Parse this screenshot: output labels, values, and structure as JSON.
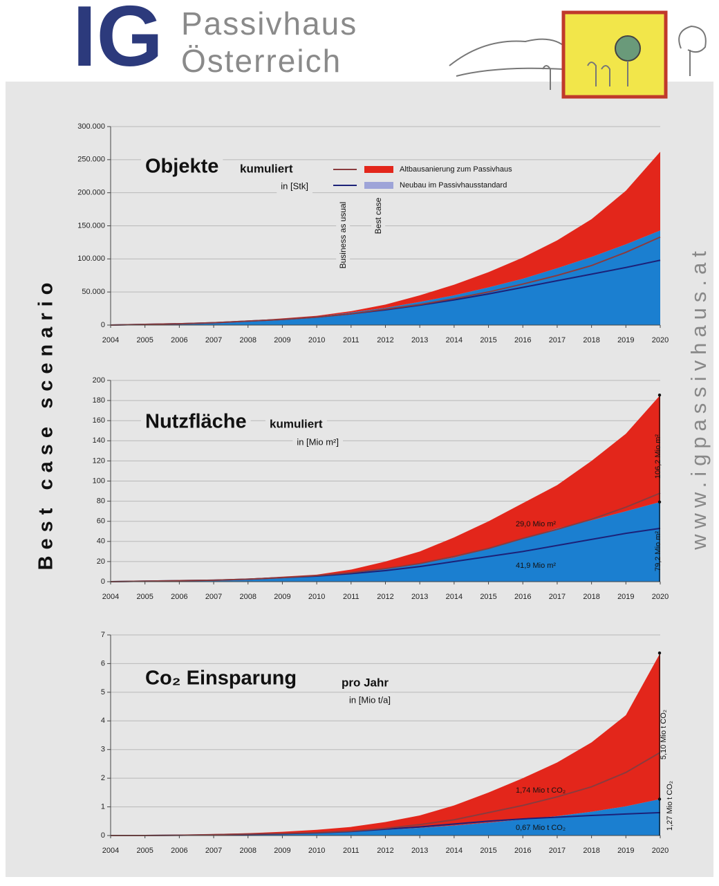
{
  "header": {
    "logo": "IG",
    "name_line1": "Passivhaus",
    "name_line2": "Österreich"
  },
  "side_left": "Best case scenario",
  "side_right": "www.igpassivhaus.at",
  "chart_data": [
    {
      "type": "area",
      "title": "Objekte",
      "subtitle": "kumuliert",
      "unit": "in [Stk]",
      "x": [
        2004,
        2005,
        2006,
        2007,
        2008,
        2009,
        2010,
        2011,
        2012,
        2013,
        2014,
        2015,
        2016,
        2017,
        2018,
        2019,
        2020
      ],
      "xlim": [
        2004,
        2020
      ],
      "xticks": [
        2004,
        2005,
        2006,
        2007,
        2008,
        2009,
        2010,
        2011,
        2012,
        2013,
        2014,
        2015,
        2016,
        2017,
        2018,
        2019,
        2020
      ],
      "ylim": [
        0,
        300000
      ],
      "yticks": [
        0,
        {
          "value": 50000,
          "label": "50.000"
        },
        {
          "value": 100000,
          "label": "100.000"
        },
        {
          "value": 150000,
          "label": "150.000"
        },
        {
          "value": 200000,
          "label": "200.000"
        },
        {
          "value": 250000,
          "label": "250.000"
        },
        {
          "value": 300000,
          "label": "300.000"
        }
      ],
      "grid": true,
      "legend": {
        "columns": [
          "Business as usual",
          "Best case"
        ]
      },
      "series": [
        {
          "name": "Neubau  im  Passivhausstandard",
          "color": "#1b7fd0",
          "legend_color": "#9ea4d8",
          "line_color": "#1c2178",
          "values": [
            0,
            1000,
            2000,
            3500,
            6000,
            9000,
            13000,
            19000,
            26000,
            35000,
            45000,
            57000,
            70000,
            86000,
            103000,
            122000,
            143000
          ],
          "bau_values": [
            0,
            1000,
            2000,
            3500,
            6000,
            8500,
            12000,
            17000,
            23000,
            30000,
            38000,
            47000,
            57000,
            67000,
            77000,
            87000,
            98000
          ]
        },
        {
          "name": "Altbausanierung zum Passivhaus",
          "color": "#e3261b",
          "line_color": "#8a3b3e",
          "values": [
            0,
            0,
            0,
            500,
            500,
            1000,
            1000,
            2000,
            5000,
            10000,
            16000,
            23000,
            32000,
            42000,
            57000,
            81000,
            119000
          ],
          "bau_values": [
            0,
            1000,
            2000,
            3500,
            6000,
            8500,
            12000,
            17000,
            24000,
            31000,
            40000,
            50000,
            62000,
            75000,
            90000,
            110000,
            133000
          ]
        }
      ]
    },
    {
      "type": "area",
      "title": "Nutzfläche",
      "subtitle": "kumuliert",
      "unit": "in [Mio m²]",
      "x": [
        2004,
        2005,
        2006,
        2007,
        2008,
        2009,
        2010,
        2011,
        2012,
        2013,
        2014,
        2015,
        2016,
        2017,
        2018,
        2019,
        2020
      ],
      "xlim": [
        2004,
        2020
      ],
      "xticks": [
        2004,
        2005,
        2006,
        2007,
        2008,
        2009,
        2010,
        2011,
        2012,
        2013,
        2014,
        2015,
        2016,
        2017,
        2018,
        2019,
        2020
      ],
      "ylim": [
        0,
        200
      ],
      "yticks": [
        0,
        20,
        40,
        60,
        80,
        100,
        120,
        140,
        160,
        180,
        200
      ],
      "grid": true,
      "series": [
        {
          "color": "#1b7fd0",
          "line_color": "#1c2178",
          "values": [
            0,
            0.5,
            1,
            1.5,
            2.5,
            4,
            6,
            9,
            13,
            18,
            24,
            33,
            43,
            53,
            61,
            70,
            79.2
          ],
          "bau_values": [
            0,
            0.5,
            1,
            1.5,
            2.5,
            4,
            5.5,
            8,
            11,
            15,
            20,
            25,
            30,
            36,
            42,
            48,
            53
          ]
        },
        {
          "color": "#e3261b",
          "line_color": "#8a3b3e",
          "values": [
            0,
            0,
            0,
            0.5,
            0.5,
            1,
            1,
            3,
            7,
            12,
            20,
            27,
            35,
            43,
            59,
            77,
            106.2
          ],
          "bau_values": [
            0,
            0.5,
            1,
            1.5,
            2.5,
            4,
            6,
            9,
            13,
            18,
            25,
            33,
            43,
            52,
            62,
            74,
            88
          ]
        }
      ],
      "annotations": [
        "29,0 Mio m²",
        "41,9 Mio m²",
        "106,2 Mio m²",
        "79,2 Mio m²"
      ]
    },
    {
      "type": "area",
      "title": "Co₂ Einsparung",
      "subtitle": "pro Jahr",
      "unit": "in [Mio t/a]",
      "x": [
        2004,
        2005,
        2006,
        2007,
        2008,
        2009,
        2010,
        2011,
        2012,
        2013,
        2014,
        2015,
        2016,
        2017,
        2018,
        2019,
        2020
      ],
      "xlim": [
        2004,
        2020
      ],
      "xticks": [
        2004,
        2005,
        2006,
        2007,
        2008,
        2009,
        2010,
        2011,
        2012,
        2013,
        2014,
        2015,
        2016,
        2017,
        2018,
        2019,
        2020
      ],
      "ylim": [
        0,
        7
      ],
      "yticks": [
        0,
        1,
        2,
        3,
        4,
        5,
        6,
        7
      ],
      "grid": true,
      "series": [
        {
          "color": "#1b7fd0",
          "line_color": "#1c2178",
          "values": [
            0,
            0,
            0,
            0.02,
            0.04,
            0.07,
            0.1,
            0.15,
            0.2,
            0.27,
            0.35,
            0.45,
            0.56,
            0.68,
            0.83,
            1.02,
            1.27
          ],
          "bau_values": [
            0,
            0,
            0.01,
            0.02,
            0.04,
            0.06,
            0.09,
            0.14,
            0.22,
            0.3,
            0.4,
            0.5,
            0.58,
            0.64,
            0.7,
            0.75,
            0.8
          ]
        },
        {
          "color": "#e3261b",
          "line_color": "#8a3b3e",
          "values": [
            0,
            0,
            0.02,
            0.03,
            0.04,
            0.06,
            0.1,
            0.15,
            0.27,
            0.43,
            0.7,
            1.05,
            1.44,
            1.87,
            2.42,
            3.18,
            5.1
          ],
          "bau_values": [
            0,
            0,
            0.01,
            0.03,
            0.05,
            0.07,
            0.1,
            0.15,
            0.25,
            0.38,
            0.55,
            0.8,
            1.05,
            1.35,
            1.7,
            2.2,
            2.9
          ]
        }
      ],
      "annotations": [
        "1,74 Mio t CO₂",
        "0,67 Mio t CO₂",
        "5,10 Mio t CO₂",
        "1,27 Mio t CO₂"
      ]
    }
  ]
}
